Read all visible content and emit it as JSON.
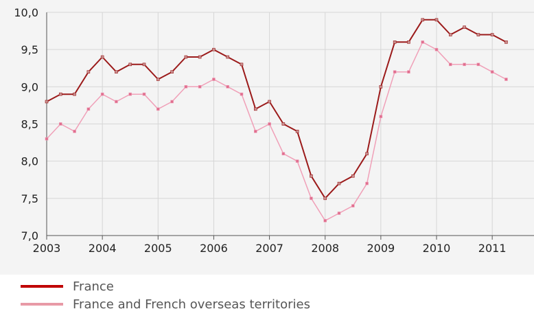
{
  "chart_data": {
    "type": "line",
    "x": [
      2003.0,
      2003.25,
      2003.5,
      2003.75,
      2004.0,
      2004.25,
      2004.5,
      2004.75,
      2005.0,
      2005.25,
      2005.5,
      2005.75,
      2006.0,
      2006.25,
      2006.5,
      2006.75,
      2007.0,
      2007.25,
      2007.5,
      2007.75,
      2008.0,
      2008.25,
      2008.5,
      2008.75,
      2009.0,
      2009.25,
      2009.5,
      2009.75,
      2010.0,
      2010.25,
      2010.5,
      2010.75,
      2011.0,
      2011.25
    ],
    "series": [
      {
        "name": "France",
        "color": "#9b1a1a",
        "values": [
          8.8,
          8.9,
          8.9,
          9.2,
          9.4,
          9.2,
          9.3,
          9.3,
          9.1,
          9.2,
          9.4,
          9.4,
          9.5,
          9.4,
          9.3,
          8.7,
          8.8,
          8.5,
          8.4,
          7.8,
          7.5,
          7.7,
          7.8,
          8.1,
          9.0,
          9.6,
          9.6,
          9.9,
          9.9,
          9.7,
          9.8,
          9.7,
          9.7,
          9.6
        ]
      },
      {
        "name": "France and French overseas territories",
        "color": "#f0a0b8",
        "values": [
          8.3,
          8.5,
          8.4,
          8.7,
          8.9,
          8.8,
          8.9,
          8.9,
          8.7,
          8.8,
          9.0,
          9.0,
          9.1,
          9.0,
          8.9,
          8.4,
          8.5,
          8.1,
          8.0,
          7.5,
          7.2,
          7.3,
          7.4,
          7.7,
          8.6,
          9.2,
          9.2,
          9.6,
          9.5,
          9.3,
          9.3,
          9.3,
          9.2,
          9.1
        ]
      }
    ],
    "xlim": [
      2003.0,
      2011.75
    ],
    "ylim": [
      7.0,
      10.0
    ],
    "yticks": [
      7.0,
      7.5,
      8.0,
      8.5,
      9.0,
      9.5,
      10.0
    ],
    "ytick_labels": [
      "7,0",
      "7,5",
      "8,0",
      "8,5",
      "9,0",
      "9,5",
      "10,0"
    ],
    "xticks": [
      2003,
      2004,
      2005,
      2006,
      2007,
      2008,
      2009,
      2010,
      2011
    ],
    "xtick_labels": [
      "2003",
      "2004",
      "2005",
      "2006",
      "2007",
      "2008",
      "2009",
      "2010",
      "2011"
    ],
    "title": "",
    "xlabel": "",
    "ylabel": "",
    "grid": true,
    "legend_position": "bottom-left"
  },
  "legend": {
    "items": [
      {
        "label": "France",
        "color": "#c00000"
      },
      {
        "label": "France and French overseas territories",
        "color": "#e89aa6"
      }
    ]
  }
}
